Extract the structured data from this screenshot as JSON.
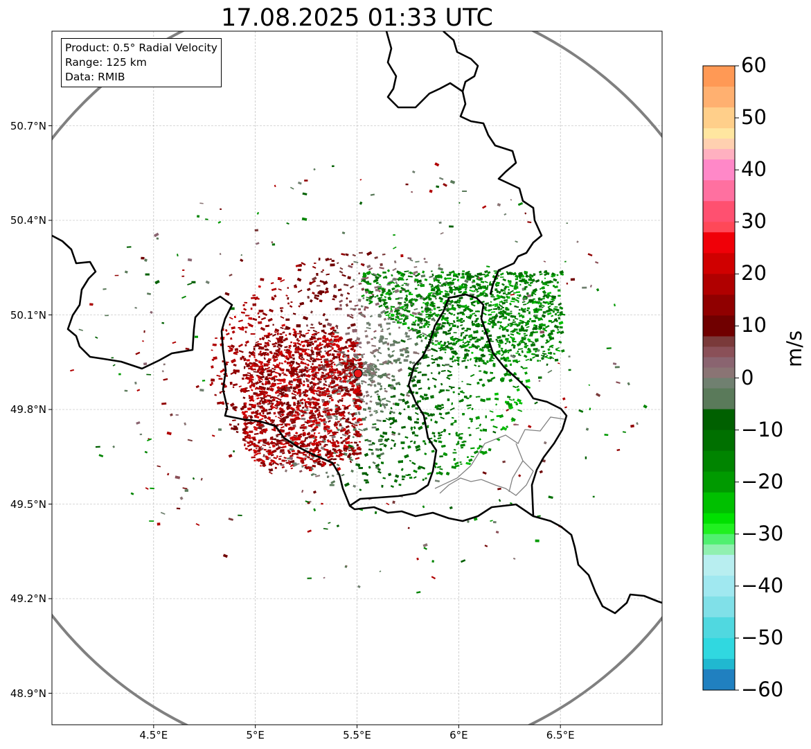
{
  "title": "17.08.2025 01:33 UTC",
  "info": {
    "product": "Product: 0.5° Radial Velocity",
    "range": "Range: 125 km",
    "data": "Data: RMIB"
  },
  "map": {
    "lon_range": [
      4.0,
      7.0
    ],
    "lat_range": [
      48.8,
      51.0
    ],
    "radar_site": {
      "lon": 5.505,
      "lat": 49.914
    },
    "range_ring_km": 125,
    "lat_ticks": [
      {
        "value": 50.7,
        "label": "50.7°N"
      },
      {
        "value": 50.4,
        "label": "50.4°N"
      },
      {
        "value": 50.1,
        "label": "50.1°N"
      },
      {
        "value": 49.8,
        "label": "49.8°N"
      },
      {
        "value": 49.5,
        "label": "49.5°N"
      },
      {
        "value": 49.2,
        "label": "49.2°N"
      },
      {
        "value": 48.9,
        "label": "48.9°N"
      }
    ],
    "lon_ticks": [
      {
        "value": 4.5,
        "label": "4.5°E"
      },
      {
        "value": 5.0,
        "label": "5°E"
      },
      {
        "value": 5.5,
        "label": "5.5°E"
      },
      {
        "value": 6.0,
        "label": "6°E"
      },
      {
        "value": 6.5,
        "label": "6.5°E"
      }
    ],
    "gridlines": true,
    "colors": {
      "border": "#000000",
      "admin_border": "#808080",
      "range_ring": "#808080",
      "grid": "#b0b0b0",
      "radar_marker": "#e81818"
    }
  },
  "colorbar": {
    "label": "m/s",
    "min": -60,
    "max": 60,
    "ticks": [
      {
        "value": 60,
        "label": "60"
      },
      {
        "value": 50,
        "label": "50"
      },
      {
        "value": 40,
        "label": "40"
      },
      {
        "value": 30,
        "label": "30"
      },
      {
        "value": 20,
        "label": "20"
      },
      {
        "value": 10,
        "label": "10"
      },
      {
        "value": 0,
        "label": "0"
      },
      {
        "value": -10,
        "label": "−10"
      },
      {
        "value": -20,
        "label": "−20"
      },
      {
        "value": -30,
        "label": "−30"
      },
      {
        "value": -40,
        "label": "−40"
      },
      {
        "value": -50,
        "label": "−50"
      },
      {
        "value": -60,
        "label": "−60"
      }
    ],
    "bands": [
      {
        "from": 56,
        "to": 60,
        "color": "#ff9955"
      },
      {
        "from": 52,
        "to": 56,
        "color": "#ffb070"
      },
      {
        "from": 48,
        "to": 52,
        "color": "#ffcf8a"
      },
      {
        "from": 46,
        "to": 48,
        "color": "#ffe6a0"
      },
      {
        "from": 44,
        "to": 46,
        "color": "#ffd0b0"
      },
      {
        "from": 42,
        "to": 44,
        "color": "#ffb0c0"
      },
      {
        "from": 38,
        "to": 42,
        "color": "#ff88c8"
      },
      {
        "from": 34,
        "to": 38,
        "color": "#ff70a0"
      },
      {
        "from": 30,
        "to": 34,
        "color": "#ff5070"
      },
      {
        "from": 28,
        "to": 30,
        "color": "#ff4858"
      },
      {
        "from": 24,
        "to": 28,
        "color": "#f00008"
      },
      {
        "from": 20,
        "to": 24,
        "color": "#d00000"
      },
      {
        "from": 16,
        "to": 20,
        "color": "#b00000"
      },
      {
        "from": 12,
        "to": 16,
        "color": "#900000"
      },
      {
        "from": 8,
        "to": 12,
        "color": "#700000"
      },
      {
        "from": 6,
        "to": 8,
        "color": "#7a3a3a"
      },
      {
        "from": 4,
        "to": 6,
        "color": "#8a5058"
      },
      {
        "from": 2,
        "to": 4,
        "color": "#8a6470"
      },
      {
        "from": 0,
        "to": 2,
        "color": "#8a7474"
      },
      {
        "from": -2,
        "to": 0,
        "color": "#708070"
      },
      {
        "from": -6,
        "to": -2,
        "color": "#5a7a5a"
      },
      {
        "from": -10,
        "to": -6,
        "color": "#006000"
      },
      {
        "from": -14,
        "to": -10,
        "color": "#007000"
      },
      {
        "from": -18,
        "to": -14,
        "color": "#008400"
      },
      {
        "from": -22,
        "to": -18,
        "color": "#009a00"
      },
      {
        "from": -26,
        "to": -22,
        "color": "#00c000"
      },
      {
        "from": -28,
        "to": -26,
        "color": "#00e000"
      },
      {
        "from": -30,
        "to": -28,
        "color": "#20f020"
      },
      {
        "from": -32,
        "to": -30,
        "color": "#50f070"
      },
      {
        "from": -34,
        "to": -32,
        "color": "#90f0b0"
      },
      {
        "from": -38,
        "to": -34,
        "color": "#b8eef0"
      },
      {
        "from": -42,
        "to": -38,
        "color": "#a0e8f0"
      },
      {
        "from": -46,
        "to": -42,
        "color": "#80e0e8"
      },
      {
        "from": -50,
        "to": -46,
        "color": "#50d8e0"
      },
      {
        "from": -54,
        "to": -50,
        "color": "#30d8e0"
      },
      {
        "from": -56,
        "to": -54,
        "color": "#20b8d0"
      },
      {
        "from": -60,
        "to": -56,
        "color": "#2080c0"
      }
    ]
  }
}
